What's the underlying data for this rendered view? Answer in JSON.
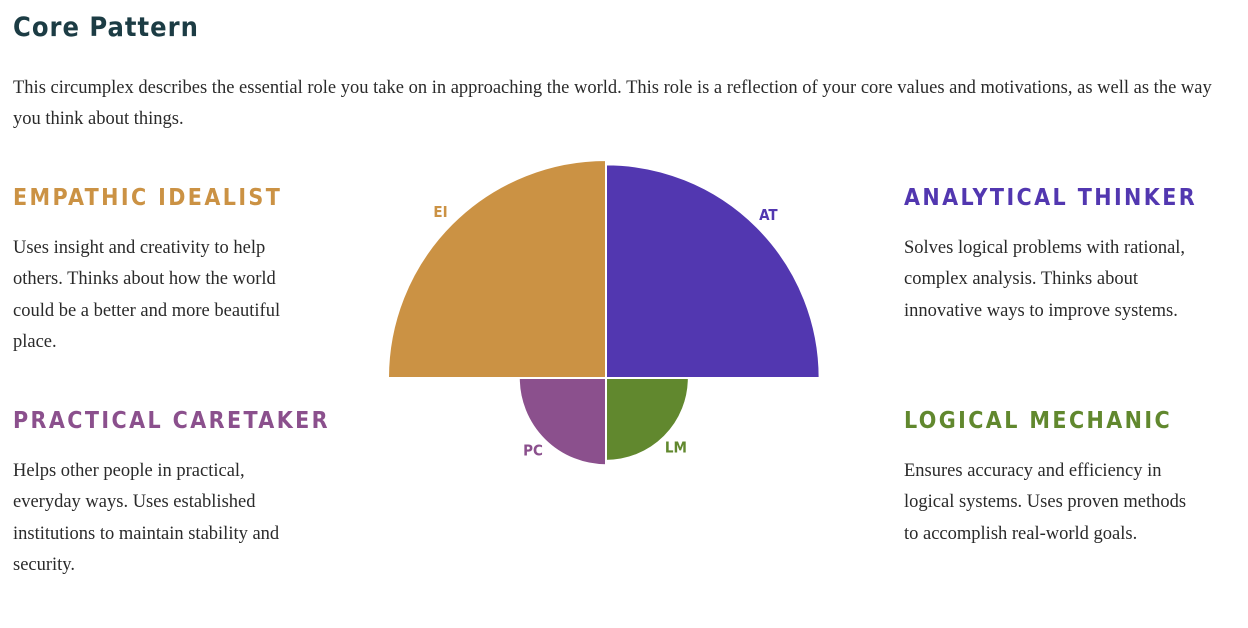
{
  "page": {
    "title": "Core Pattern",
    "intro": "This circumplex describes the essential role you take on in approaching the world. This role is a reflection of your core values and motivations, as well as the way you think about things."
  },
  "quadrants": {
    "ei": {
      "title": "EMPATHIC IDEALIST",
      "description": "Uses insight and creativity to help others. Thinks about how the world could be a better and more beautiful place.",
      "color": "#cb9244"
    },
    "at": {
      "title": "ANALYTICAL THINKER",
      "description": "Solves logical problems with rational, complex analysis. Thinks about innovative ways to improve systems.",
      "color": "#5237b0"
    },
    "pc": {
      "title": "PRACTICAL CARETAKER",
      "description": "Helps other people in practical, everyday ways. Uses established institutions to maintain stability and security.",
      "color": "#8b508d"
    },
    "lm": {
      "title": "LOGICAL MECHANIC",
      "description": "Ensures accuracy and efficiency in logical systems. Uses proven methods to accomplish real-world goals.",
      "color": "#61882e"
    }
  },
  "chart_data": {
    "type": "pie",
    "subtype": "polar-area-circumplex",
    "relative_scale": true,
    "segments": [
      {
        "key": "ei",
        "label": "EI",
        "value": 1.0,
        "position": "top-left",
        "color": "#cb9244"
      },
      {
        "key": "at",
        "label": "AT",
        "value": 0.98,
        "position": "top-right",
        "color": "#5237b0"
      },
      {
        "key": "lm",
        "label": "LM",
        "value": 0.38,
        "position": "bottom-right",
        "color": "#61882e"
      },
      {
        "key": "pc",
        "label": "PC",
        "value": 0.4,
        "position": "bottom-left",
        "color": "#8b508d"
      }
    ]
  }
}
